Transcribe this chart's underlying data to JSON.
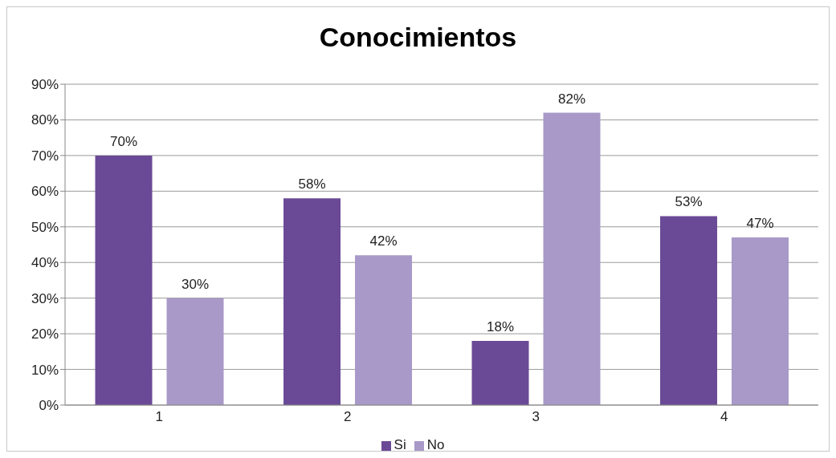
{
  "chart_data": {
    "type": "bar",
    "title": "Conocimientos",
    "categories": [
      "1",
      "2",
      "3",
      "4"
    ],
    "series": [
      {
        "name": "Si",
        "color": "#6a4a96",
        "values": [
          70,
          58,
          18,
          53
        ],
        "value_labels": [
          "70%",
          "58%",
          "18%",
          "53%"
        ]
      },
      {
        "name": "No",
        "color": "#a899c8",
        "values": [
          30,
          42,
          82,
          47
        ],
        "value_labels": [
          "30%",
          "42%",
          "82%",
          "47%"
        ]
      }
    ],
    "ylim": [
      0,
      90
    ],
    "yticks": [
      {
        "value": 0,
        "label": "0%"
      },
      {
        "value": 10,
        "label": "10%"
      },
      {
        "value": 20,
        "label": "20%"
      },
      {
        "value": 30,
        "label": "30%"
      },
      {
        "value": 40,
        "label": "40%"
      },
      {
        "value": 50,
        "label": "50%"
      },
      {
        "value": 60,
        "label": "60%"
      },
      {
        "value": 70,
        "label": "70%"
      },
      {
        "value": 80,
        "label": "80%"
      },
      {
        "value": 90,
        "label": "90%"
      }
    ],
    "grid": "y",
    "legend": "bottom"
  }
}
